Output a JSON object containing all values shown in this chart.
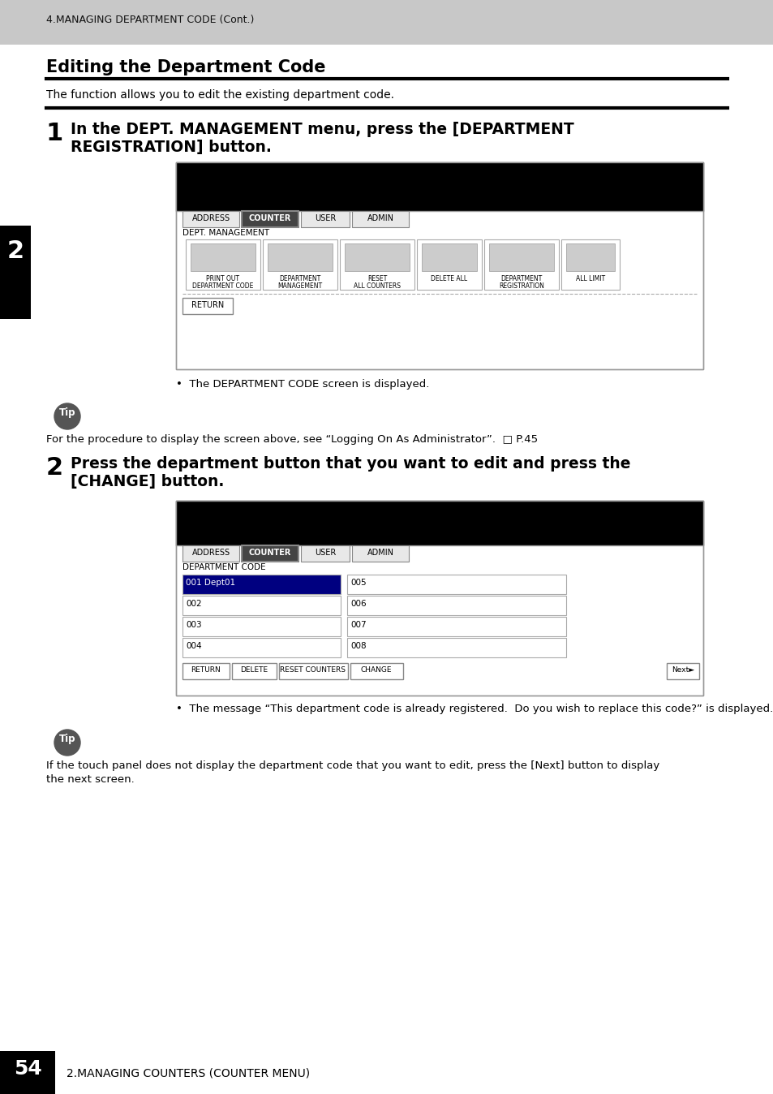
{
  "header_text": "4.MANAGING DEPARTMENT CODE (Cont.)",
  "header_bg": "#c8c8c8",
  "title": "Editing the Department Code",
  "intro": "The function allows you to edit the existing department code.",
  "step1_num": "1",
  "step1_bullet": "The DEPARTMENT CODE screen is displayed.",
  "tip_text1": "For the procedure to display the screen above, see “Logging On As Administrator”.  □ P.45",
  "step2_num": "2",
  "step2_line1": "Press the department button that you want to edit and press the",
  "step2_line2": "[CHANGE] button.",
  "step2_bullet": "The message “This department code is already registered.  Do you wish to replace this code?” is displayed.",
  "tip_text2_line1": "If the touch panel does not display the department code that you want to edit, press the [Next] button to display",
  "tip_text2_line2": "the next screen.",
  "tab_labels": [
    "ADDRESS",
    "COUNTER",
    "USER",
    "ADMIN"
  ],
  "screen1_label": "DEPT. MANAGEMENT",
  "icon_labels": [
    "PRINT OUT\nDEPARTMENT CODE",
    "DEPARTMENT\nMANAGEMENT",
    "RESET\nALL COUNTERS",
    "DELETE ALL",
    "DEPARTMENT\nREGISTRATION",
    "ALL LIMIT"
  ],
  "dept_code_rows_left": [
    "001 Dept01",
    "002",
    "003",
    "004"
  ],
  "dept_code_rows_right": [
    "005",
    "006",
    "007",
    "008"
  ],
  "btn_labels2": [
    "RETURN",
    "DELETE",
    "RESET COUNTERS",
    "CHANGE"
  ],
  "page_num": "54",
  "page_footer": "2.MANAGING COUNTERS (COUNTER MENU)",
  "sidebar_num": "2",
  "bg_white": "#ffffff",
  "bg_black": "#000000",
  "bg_gray": "#c8c8c8",
  "screen_border": "#888888",
  "highlight_blue": "#000080",
  "step1_line1": "In the DEPT. MANAGEMENT menu, press the [DEPARTMENT",
  "step1_line2": "REGISTRATION] button."
}
